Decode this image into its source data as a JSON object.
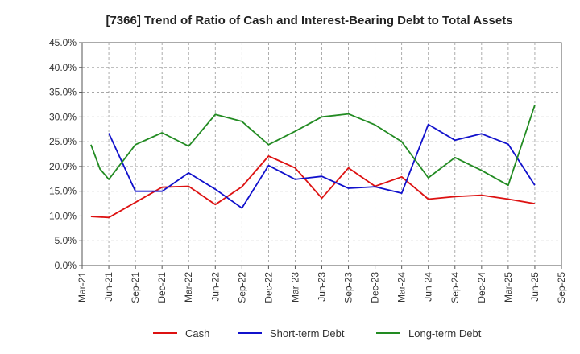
{
  "chart_data": {
    "type": "line",
    "title": "[7366]  Trend of Ratio of Cash and Interest-Bearing Debt to Total Assets",
    "xlabel": "",
    "ylabel": "",
    "x_ticks": [
      "Mar-21",
      "Jun-21",
      "Sep-21",
      "Dec-21",
      "Mar-22",
      "Jun-22",
      "Sep-22",
      "Dec-22",
      "Mar-23",
      "Jun-23",
      "Sep-23",
      "Dec-23",
      "Mar-24",
      "Jun-24",
      "Sep-24",
      "Dec-24",
      "Mar-25",
      "Jun-25",
      "Sep-25"
    ],
    "y_ticks": [
      "0.0%",
      "5.0%",
      "10.0%",
      "15.0%",
      "20.0%",
      "25.0%",
      "30.0%",
      "35.0%",
      "40.0%",
      "45.0%"
    ],
    "ylim": [
      0,
      45
    ],
    "grid": true,
    "legend_position": "bottom",
    "series": [
      {
        "name": "Cash",
        "color": "#dd1111",
        "points": [
          [
            0.33,
            9.9
          ],
          [
            1,
            9.7
          ],
          [
            3,
            15.8
          ],
          [
            4,
            16.0
          ],
          [
            5,
            12.3
          ],
          [
            6,
            15.9
          ],
          [
            7,
            22.1
          ],
          [
            8,
            19.7
          ],
          [
            9,
            13.6
          ],
          [
            10,
            19.7
          ],
          [
            11,
            16.0
          ],
          [
            12,
            17.9
          ],
          [
            13,
            13.4
          ],
          [
            14,
            13.9
          ],
          [
            15,
            14.2
          ],
          [
            16,
            13.4
          ],
          [
            17,
            12.5
          ]
        ]
      },
      {
        "name": "Short-term Debt",
        "color": "#1111cc",
        "points": [
          [
            1,
            26.7
          ],
          [
            2,
            15.0
          ],
          [
            3,
            15.0
          ],
          [
            4,
            18.7
          ],
          [
            5,
            15.4
          ],
          [
            6,
            11.6
          ],
          [
            7,
            20.2
          ],
          [
            8,
            17.4
          ],
          [
            9,
            18.0
          ],
          [
            10,
            15.6
          ],
          [
            11,
            15.9
          ],
          [
            12,
            14.6
          ],
          [
            13,
            28.5
          ],
          [
            14,
            25.3
          ],
          [
            15,
            26.6
          ],
          [
            16,
            24.5
          ],
          [
            17,
            16.2
          ]
        ]
      },
      {
        "name": "Long-term Debt",
        "color": "#228b22",
        "points": [
          [
            0.33,
            24.4
          ],
          [
            0.67,
            19.5
          ],
          [
            1,
            17.4
          ],
          [
            2,
            24.4
          ],
          [
            3,
            26.8
          ],
          [
            4,
            24.1
          ],
          [
            5,
            30.5
          ],
          [
            6,
            29.1
          ],
          [
            7,
            24.4
          ],
          [
            8,
            27.1
          ],
          [
            9,
            30.0
          ],
          [
            10,
            30.6
          ],
          [
            11,
            28.4
          ],
          [
            12,
            25.0
          ],
          [
            13,
            17.7
          ],
          [
            14,
            21.8
          ],
          [
            15,
            19.2
          ],
          [
            16,
            16.2
          ],
          [
            17,
            32.4
          ]
        ]
      }
    ]
  }
}
